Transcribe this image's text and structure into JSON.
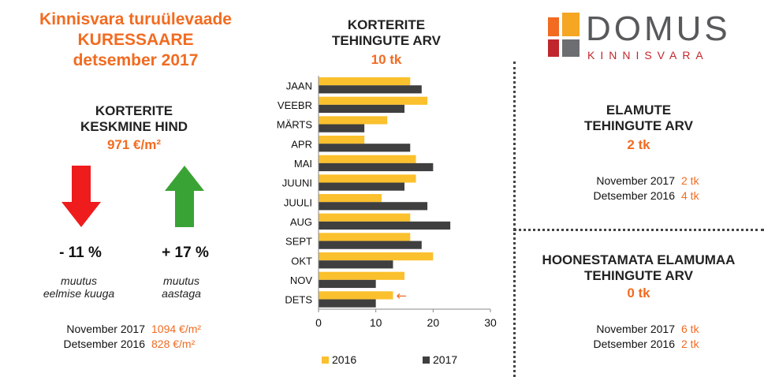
{
  "header": {
    "line1": "Kinnisvara turuülevaade",
    "line2": "KURESSAARE",
    "line3": "detsember 2017"
  },
  "avg_price": {
    "head1": "KORTERITE",
    "head2": "KESKMINE HIND",
    "value": "971 €/m²",
    "month_change": "- 11 %",
    "month_note1": "muutus",
    "month_note2": "eelmise kuuga",
    "year_change": "+ 17 %",
    "year_note1": "muutus",
    "year_note2": "aastaga",
    "cmp": [
      {
        "label": "November  2017",
        "value": "1094 €/m²"
      },
      {
        "label": "Detsember  2016",
        "value": "828 €/m²"
      }
    ],
    "colors": {
      "down": "#ee1c1c",
      "up": "#3aa335"
    }
  },
  "chart_header": {
    "head1": "KORTERITE",
    "head2": "TEHINGUTE ARV",
    "value": "10 tk"
  },
  "logo": {
    "brand": "DOMUS",
    "sub": "KINNISVARA",
    "colors": [
      "#f26b21",
      "#f5a623",
      "#c0272d",
      "#6d6e71"
    ]
  },
  "houses": {
    "head1": "ELAMUTE",
    "head2": "TEHINGUTE ARV",
    "value": "2 tk",
    "cmp": [
      {
        "label": "November  2017",
        "value": "2 tk"
      },
      {
        "label": "Detsember  2016",
        "value": "4 tk"
      }
    ]
  },
  "land": {
    "head1": "HOONESTAMATA ELAMUMAA",
    "head2": "TEHINGUTE ARV",
    "value": "0 tk",
    "cmp": [
      {
        "label": "November  2017",
        "value": "6 tk"
      },
      {
        "label": "Detsember  2016",
        "value": "2 tk"
      }
    ]
  },
  "chart_data": {
    "type": "bar",
    "orientation": "horizontal",
    "categories": [
      "JAAN",
      "VEEBR",
      "MÄRTS",
      "APR",
      "MAI",
      "JUUNI",
      "JUULI",
      "AUG",
      "SEPT",
      "OKT",
      "NOV",
      "DETS"
    ],
    "series": [
      {
        "name": "2016",
        "color": "#fbc02d",
        "values": [
          16,
          19,
          12,
          8,
          17,
          17,
          11,
          16,
          16,
          20,
          15,
          13
        ]
      },
      {
        "name": "2017",
        "color": "#3f3f3f",
        "values": [
          18,
          15,
          8,
          16,
          20,
          15,
          19,
          23,
          18,
          13,
          10,
          10
        ]
      }
    ],
    "xlim": [
      0,
      30
    ],
    "xticks": [
      "0",
      "10",
      "20",
      "30"
    ],
    "legend_position": "bottom",
    "annotation": "←",
    "annotation_color": "#f26b21"
  }
}
